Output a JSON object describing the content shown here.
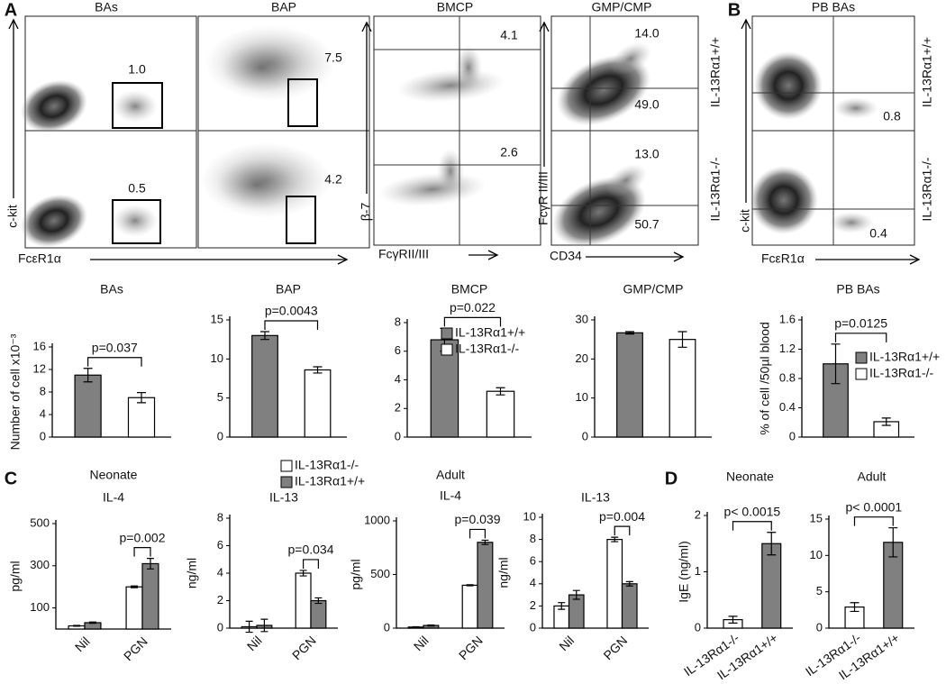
{
  "panel_labels": [
    "A",
    "B",
    "C",
    "D"
  ],
  "flow": {
    "headers": [
      "BAs",
      "BAP",
      "BMCP",
      "GMP/CMP",
      "PB BAs"
    ],
    "gate_values": [
      "1.0",
      "0.5",
      "7.5",
      "4.2",
      "4.1",
      "2.6",
      "14.0",
      "49.0",
      "13.0",
      "50.7",
      "0.8",
      "0.4"
    ],
    "axis_labels": [
      "c-kit",
      "FcεR1α",
      "β-7",
      "FcγRII/III",
      "FcγR II/III",
      "CD34",
      "c-kit",
      "FcεR1α"
    ],
    "genotypes": [
      "IL-13Rα1+/+",
      "IL-13Rα1-/-",
      "IL-13Rα1+/+",
      "IL-13Rα1-/-"
    ]
  },
  "chart_data": [
    {
      "type": "bar",
      "title": "BAs",
      "ylabel": "Number of cell x10⁻³",
      "categories": [
        null,
        null
      ],
      "values": [
        11,
        7
      ],
      "errors": [
        1.2,
        0.9
      ],
      "colors": [
        "#808080",
        "#ffffff"
      ],
      "ylim": [
        0,
        16
      ],
      "yticks": [
        0,
        4,
        8,
        12,
        16
      ],
      "annotation": "p=0.037"
    },
    {
      "type": "bar",
      "title": "BAP",
      "categories": [
        null,
        null
      ],
      "values": [
        13,
        8.6
      ],
      "errors": [
        0.5,
        0.4
      ],
      "colors": [
        "#808080",
        "#ffffff"
      ],
      "ylim": [
        0,
        15
      ],
      "yticks": [
        0,
        5,
        10,
        15
      ],
      "annotation": "p=0.0043"
    },
    {
      "type": "bar",
      "title": "BMCP",
      "categories": [
        null,
        null
      ],
      "values": [
        6.8,
        3.2
      ],
      "errors": [
        0.8,
        0.25
      ],
      "colors": [
        "#808080",
        "#ffffff"
      ],
      "ylim": [
        0,
        8
      ],
      "yticks": [
        0,
        2,
        4,
        6,
        8
      ],
      "annotation": "p=0.022",
      "legend": [
        "IL-13Rα1+/+",
        "IL-13Rα1-/-"
      ]
    },
    {
      "type": "bar",
      "title": "GMP/CMP",
      "categories": [
        null,
        null
      ],
      "values": [
        26.7,
        25
      ],
      "errors": [
        0.3,
        2
      ],
      "colors": [
        "#808080",
        "#ffffff"
      ],
      "ylim": [
        0,
        30
      ],
      "yticks": [
        0,
        10,
        20,
        30
      ]
    },
    {
      "type": "bar",
      "title": "PB BAs",
      "ylabel": "% of cell /50µl blood",
      "categories": [
        null,
        null
      ],
      "values": [
        1.0,
        0.21
      ],
      "errors": [
        0.27,
        0.05
      ],
      "colors": [
        "#808080",
        "#ffffff"
      ],
      "ylim": [
        0,
        1.6
      ],
      "yticks": [
        0,
        0.4,
        0.8,
        1.2,
        1.6
      ],
      "annotation": "p=0.0125",
      "legend": [
        "IL-13Rα1+/+",
        "IL-13Rα1-/-"
      ]
    },
    {
      "type": "grouped_bar",
      "group_title": "Neonate",
      "title": "IL-4",
      "ylabel": "pg/ml",
      "categories": [
        "Nil",
        "PGN"
      ],
      "series": [
        {
          "name": "IL-13Rα1-/-",
          "color": "#ffffff",
          "values": [
            15,
            200
          ],
          "errors": [
            2,
            4
          ]
        },
        {
          "name": "IL-13Rα1+/+",
          "color": "#808080",
          "values": [
            30,
            310
          ],
          "errors": [
            3,
            25
          ]
        }
      ],
      "ylim": [
        0,
        500
      ],
      "yticks": [
        100,
        300,
        500
      ],
      "annotation": "p=0.002"
    },
    {
      "type": "grouped_bar",
      "title": "IL-13",
      "ylabel": "ng/ml",
      "categories": [
        "Nil",
        "PGN"
      ],
      "series": [
        {
          "color": "#ffffff",
          "values": [
            0.1,
            4.0
          ],
          "errors": [
            0.4,
            0.2
          ]
        },
        {
          "color": "#808080",
          "values": [
            0.2,
            2.0
          ],
          "errors": [
            0.45,
            0.2
          ]
        }
      ],
      "ylim": [
        0,
        8
      ],
      "yticks": [
        0,
        2,
        4,
        6,
        8
      ],
      "annotation": "p=0.034"
    },
    {
      "type": "grouped_bar",
      "group_title": "Adult",
      "title": "IL-4",
      "ylabel": "pg/ml",
      "categories": [
        "Nil",
        "PGN"
      ],
      "series": [
        {
          "color": "#ffffff",
          "values": [
            10,
            400
          ],
          "errors": [
            3,
            5
          ]
        },
        {
          "color": "#808080",
          "values": [
            25,
            800
          ],
          "errors": [
            5,
            20
          ]
        }
      ],
      "ylim": [
        0,
        1000
      ],
      "yticks": [
        0,
        500,
        1000
      ],
      "annotation": "p=0.039"
    },
    {
      "type": "grouped_bar",
      "title": "IL-13",
      "ylabel": "ng/ml",
      "categories": [
        "Nil",
        "PGN"
      ],
      "series": [
        {
          "color": "#ffffff",
          "values": [
            2,
            8
          ],
          "errors": [
            0.3,
            0.2
          ]
        },
        {
          "color": "#808080",
          "values": [
            3,
            4
          ],
          "errors": [
            0.4,
            0.2
          ]
        }
      ],
      "ylim": [
        0,
        10
      ],
      "yticks": [
        0,
        2,
        4,
        6,
        8,
        10
      ],
      "annotation": "p=0.004"
    },
    {
      "type": "bar",
      "title": "Neonate",
      "ylabel": "IgE (ng/ml)",
      "categories": [
        "IL-13Rα1-/-",
        "IL-13Rα1+/+"
      ],
      "values": [
        0.15,
        1.5
      ],
      "errors": [
        0.06,
        0.2
      ],
      "colors": [
        "#ffffff",
        "#808080"
      ],
      "ylim": [
        0,
        2
      ],
      "yticks": [
        0,
        1,
        2
      ],
      "annotation": "p< 0.0015"
    },
    {
      "type": "bar",
      "title": "Adult",
      "categories": [
        "IL-13Rα1-/-",
        "IL-13Rα1+/+"
      ],
      "values": [
        2.9,
        11.8
      ],
      "errors": [
        0.6,
        2.0
      ],
      "colors": [
        "#ffffff",
        "#808080"
      ],
      "ylim": [
        0,
        15
      ],
      "yticks": [
        0,
        5,
        10,
        15
      ],
      "annotation": "p< 0.0001"
    }
  ]
}
